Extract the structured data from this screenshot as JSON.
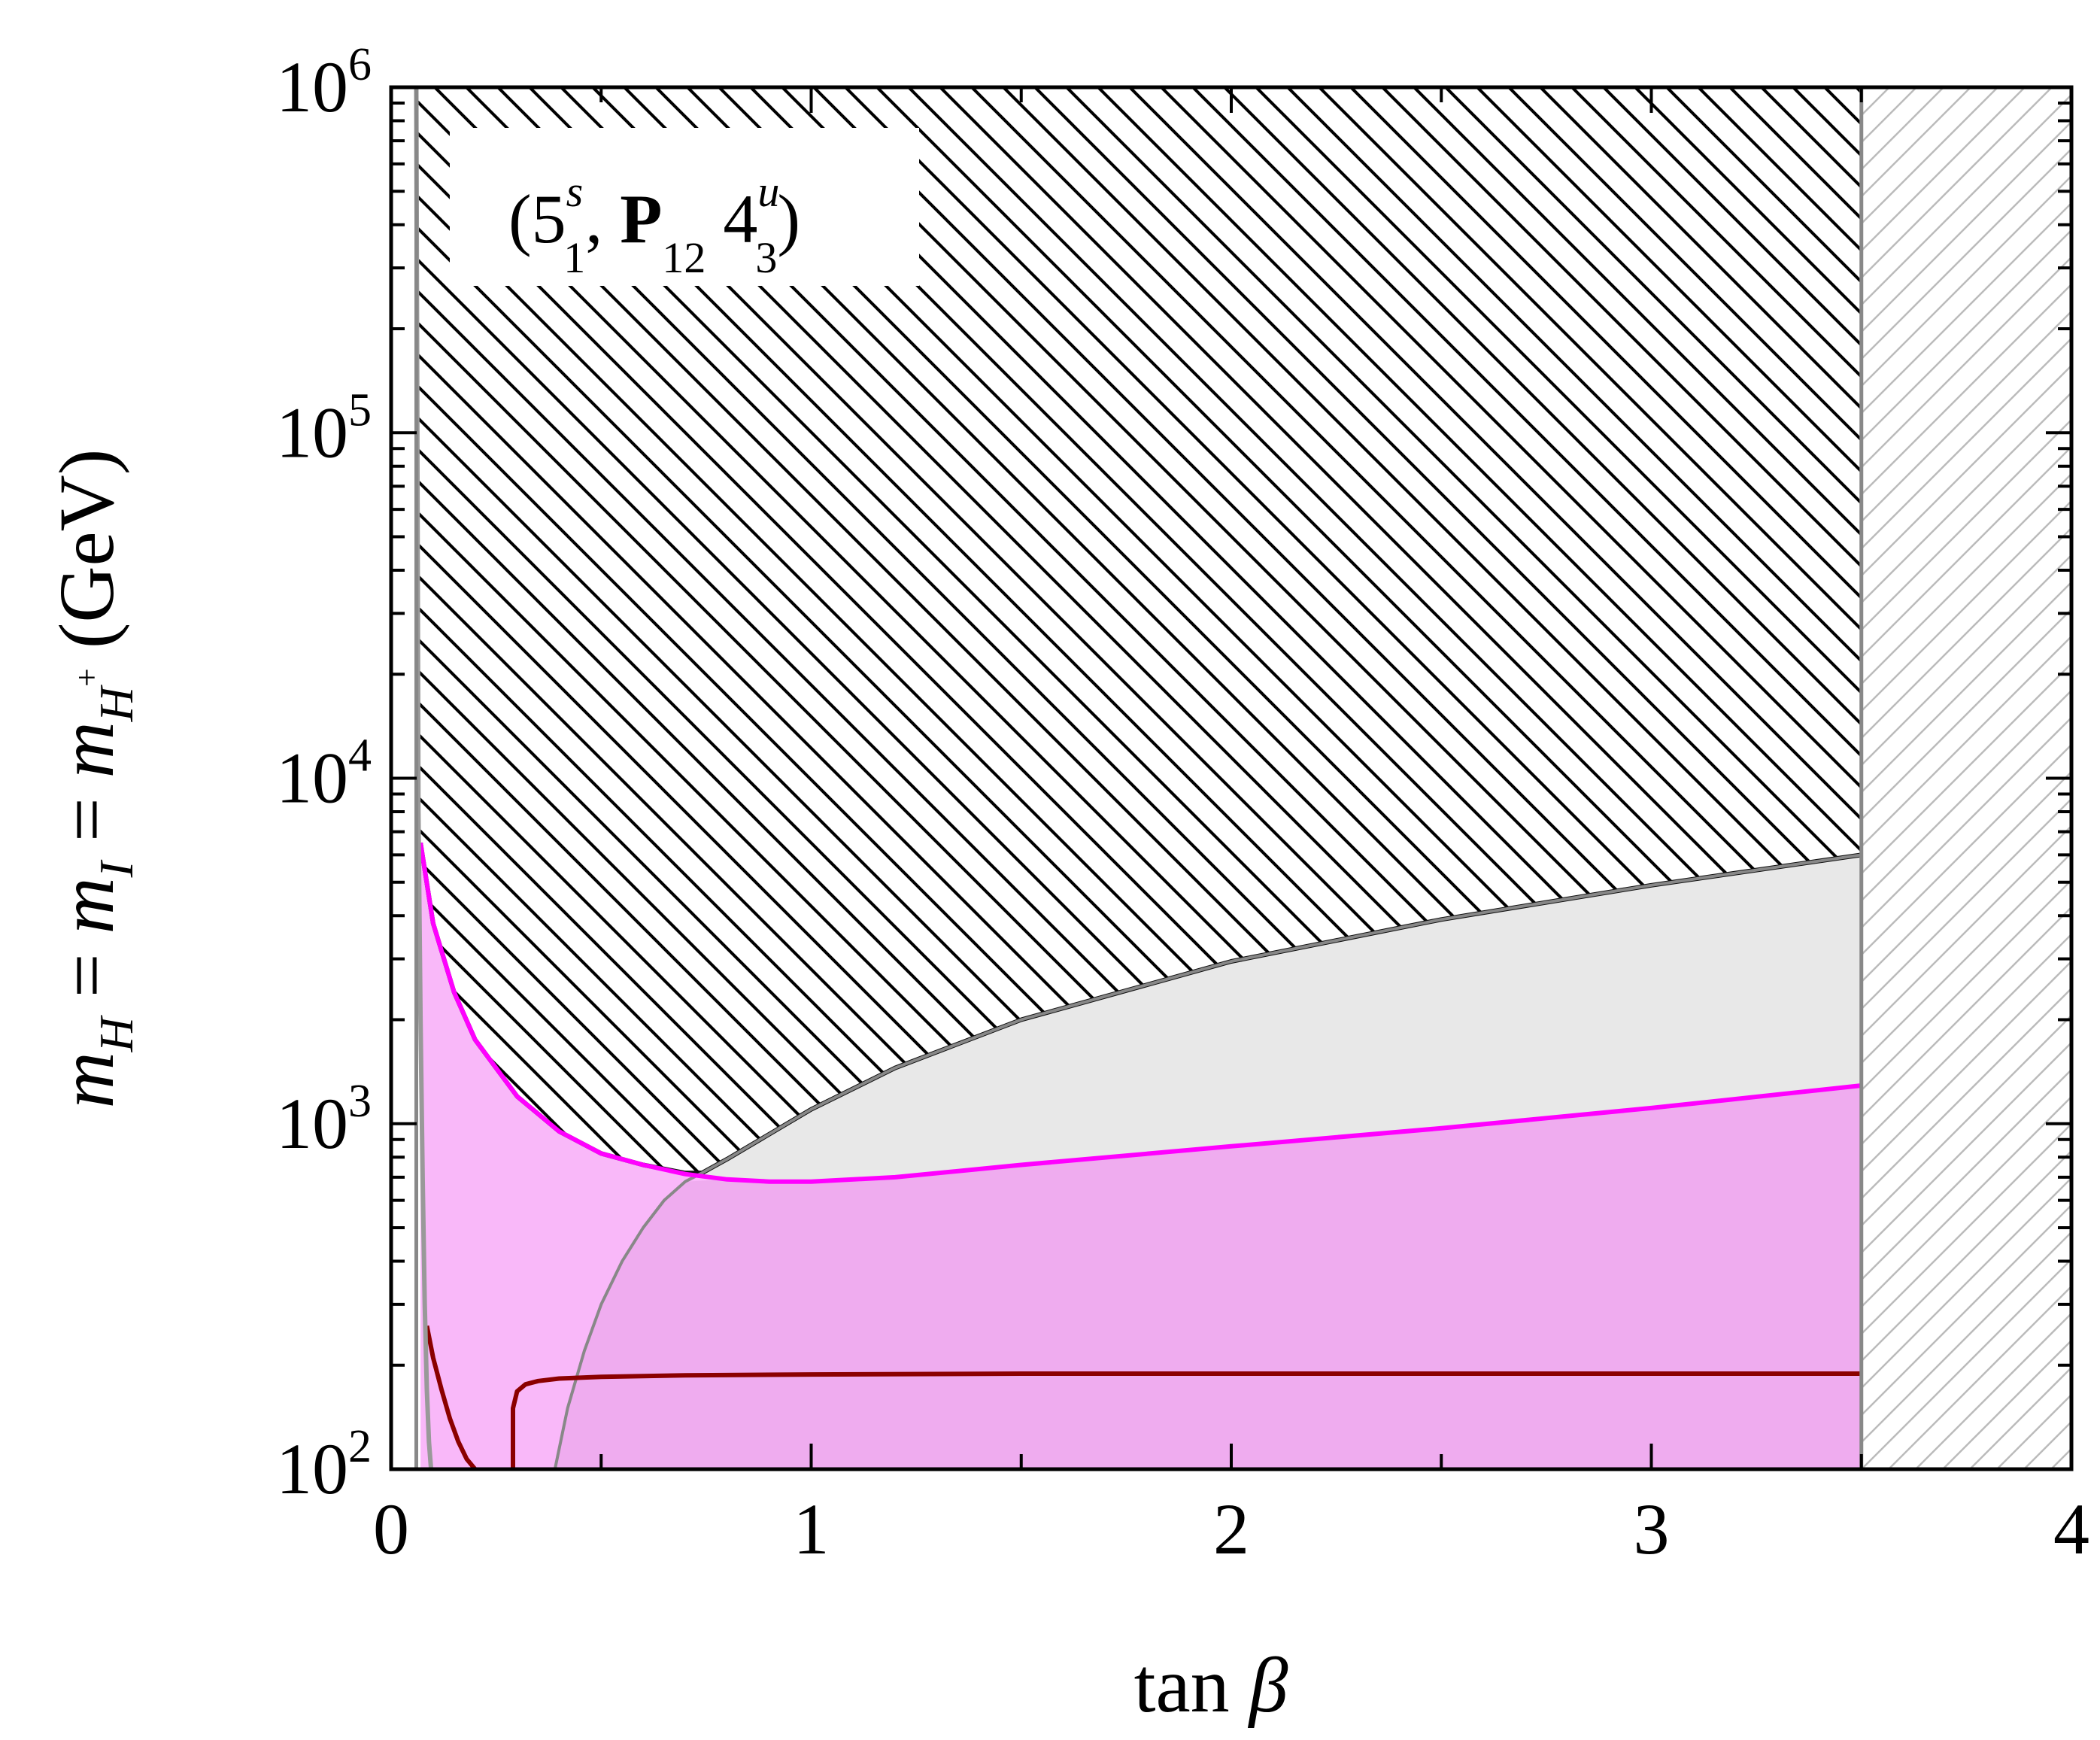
{
  "chart_data": {
    "type": "area",
    "xlabel": {
      "main": "tan",
      "symbol": "β"
    },
    "ylabel": {
      "parts": [
        "m",
        "H",
        " = ",
        "m",
        "I",
        " = ",
        "m",
        "H",
        "+",
        " (GeV)"
      ]
    },
    "xlim": [
      0,
      4
    ],
    "ylim": [
      100,
      1000000
    ],
    "yscale": "log",
    "x_ticks": [
      {
        "value": 0,
        "label": "0"
      },
      {
        "value": 1,
        "label": "1"
      },
      {
        "value": 2,
        "label": "2"
      },
      {
        "value": 3,
        "label": "3"
      },
      {
        "value": 4,
        "label": "4"
      }
    ],
    "y_ticks": [
      {
        "value": 100,
        "base": "10",
        "exp": "2"
      },
      {
        "value": 1000,
        "base": "10",
        "exp": "3"
      },
      {
        "value": 10000,
        "base": "10",
        "exp": "4"
      },
      {
        "value": 100000,
        "base": "10",
        "exp": "5"
      },
      {
        "value": 1000000,
        "base": "10",
        "exp": "6"
      }
    ],
    "annotation": {
      "open": "(5",
      "sup1": "s",
      "sub1": "1",
      "comma": ", ",
      "bold": "P",
      "sub2": "12",
      "four": " 4",
      "sup2": "u",
      "sub3": "3",
      "close": ")"
    },
    "grid": false,
    "regions": {
      "hatched_excluded_upper": {
        "description_color": "#000000"
      },
      "hatched_excluded_right": {
        "x_min": 3.5,
        "x_max": 4,
        "color": "#bbbbbb"
      },
      "gray_region": {
        "color": "#e8e8e8"
      },
      "pink_region": {
        "color": "#f9b8f9"
      },
      "purple_region": {
        "color": "#efacef"
      }
    },
    "series": [
      {
        "key": "upper_boundary",
        "color": "#111111",
        "x": [
          0.07,
          0.1,
          0.15,
          0.2,
          0.3,
          0.4,
          0.5,
          0.6,
          0.7,
          0.74,
          0.8,
          1.0,
          1.2,
          1.5,
          2.0,
          2.5,
          3.0,
          3.5
        ],
        "y": [
          6500,
          3800,
          2400,
          1750,
          1200,
          950,
          820,
          760,
          720,
          720,
          790,
          1100,
          1450,
          2000,
          2950,
          3900,
          4900,
          6000
        ]
      },
      {
        "key": "gray_boundary",
        "color": "#888888",
        "x": [
          0.39,
          0.42,
          0.46,
          0.5,
          0.55,
          0.6,
          0.65,
          0.7,
          0.74,
          0.8,
          1.0,
          1.2,
          1.5,
          2.0,
          2.5,
          3.0,
          3.5
        ],
        "y": [
          100,
          150,
          220,
          300,
          400,
          500,
          600,
          680,
          720,
          790,
          1100,
          1450,
          2000,
          2950,
          3900,
          4900,
          6000
        ]
      },
      {
        "key": "magenta_curve",
        "color": "#ff00ff",
        "x": [
          0.07,
          0.1,
          0.15,
          0.2,
          0.3,
          0.4,
          0.5,
          0.6,
          0.7,
          0.8,
          0.9,
          1.0,
          1.2,
          1.5,
          2.0,
          2.5,
          3.0,
          3.5
        ],
        "y": [
          6500,
          3800,
          2400,
          1750,
          1200,
          950,
          820,
          760,
          715,
          690,
          680,
          680,
          700,
          760,
          860,
          970,
          1110,
          1290
        ]
      },
      {
        "key": "dark_red_left",
        "color": "#8b0000",
        "x": [
          0.085,
          0.1,
          0.12,
          0.14,
          0.16,
          0.18,
          0.2
        ],
        "y": [
          260,
          210,
          170,
          140,
          120,
          107,
          100
        ]
      },
      {
        "key": "dark_red_right",
        "color": "#8b0000",
        "x": [
          0.29,
          0.29,
          0.3,
          0.32,
          0.35,
          0.4,
          0.5,
          0.7,
          1.0,
          1.5,
          2.0,
          2.5,
          3.0,
          3.5
        ],
        "y": [
          100,
          150,
          168,
          176,
          180,
          183,
          185,
          187,
          188,
          189,
          189,
          189,
          189,
          189
        ]
      },
      {
        "key": "near_axis_gray",
        "color": "#999999",
        "x": [
          0.06,
          0.065,
          0.07,
          0.075,
          0.08,
          0.085,
          0.09,
          0.095
        ],
        "y": [
          1000000,
          8000,
          2000,
          700,
          300,
          170,
          120,
          100
        ]
      }
    ]
  }
}
